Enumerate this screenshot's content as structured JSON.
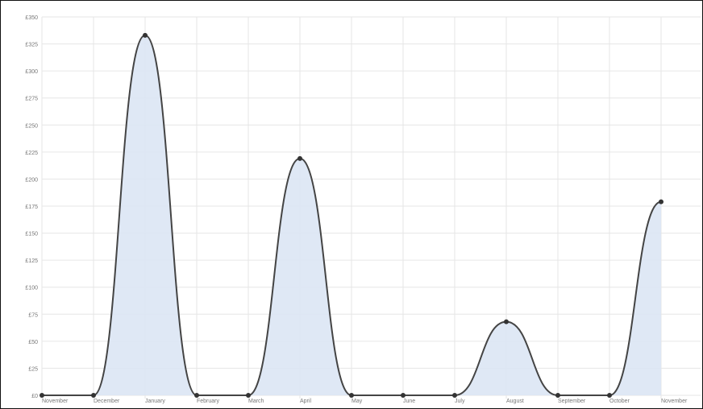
{
  "chart_data": {
    "type": "area",
    "title": "",
    "xlabel": "",
    "ylabel": "",
    "categories": [
      "November",
      "December",
      "January",
      "February",
      "March",
      "April",
      "May",
      "June",
      "July",
      "August",
      "September",
      "October",
      "November"
    ],
    "series": [
      {
        "values": [
          0,
          0,
          333,
          0,
          0,
          219,
          0,
          0,
          0,
          68,
          0,
          0,
          179
        ]
      }
    ],
    "y_ticks": [
      "£0",
      "£25",
      "£50",
      "£75",
      "£100",
      "£125",
      "£150",
      "£175",
      "£200",
      "£225",
      "£250",
      "£275",
      "£300",
      "£325",
      "£350"
    ],
    "ylim": [
      0,
      350
    ],
    "grid": true,
    "legend": "none",
    "colors": {
      "fill": "#dbe6f4",
      "line": "#444444",
      "point": "#333333",
      "grid": "#e6e6e6",
      "text": "#777777"
    }
  }
}
